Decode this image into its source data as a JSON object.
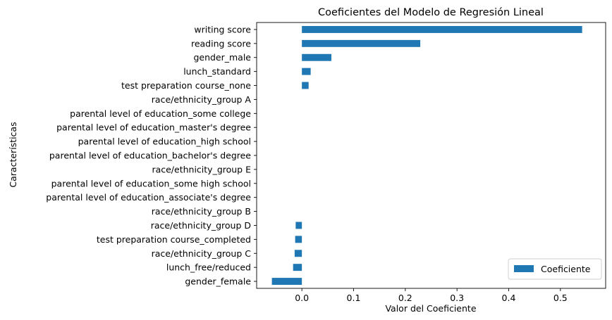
{
  "chart_data": {
    "type": "bar",
    "orientation": "horizontal",
    "title": "Coeficientes del Modelo de Regresión Lineal",
    "xlabel": "Valor del Coeficiente",
    "ylabel": "Características",
    "xlim": [
      -0.0875,
      0.5875
    ],
    "xticks": [
      0.0,
      0.1,
      0.2,
      0.3,
      0.4,
      0.5
    ],
    "xtick_labels": [
      "0.0",
      "0.1",
      "0.2",
      "0.3",
      "0.4",
      "0.5"
    ],
    "grid": false,
    "legend_position": "lower-right",
    "series": [
      {
        "name": "Coeficiente",
        "color": "#1f77b4",
        "values": [
          0.542,
          0.229,
          0.057,
          0.017,
          0.013,
          0.0,
          0.0,
          0.0,
          0.0,
          0.0,
          0.0,
          0.0,
          0.0,
          0.0,
          -0.012,
          -0.013,
          -0.014,
          -0.017,
          -0.058
        ]
      }
    ],
    "categories": [
      "writing score",
      "reading score",
      "gender_male",
      "lunch_standard",
      "test preparation course_none",
      "race/ethnicity_group A",
      "parental level of education_some college",
      "parental level of education_master's degree",
      "parental level of education_high school",
      "parental level of education_bachelor's degree",
      "race/ethnicity_group E",
      "parental level of education_some high school",
      "parental level of education_associate's degree",
      "race/ethnicity_group B",
      "race/ethnicity_group D",
      "test preparation course_completed",
      "race/ethnicity_group C",
      "lunch_free/reduced",
      "gender_female"
    ]
  }
}
